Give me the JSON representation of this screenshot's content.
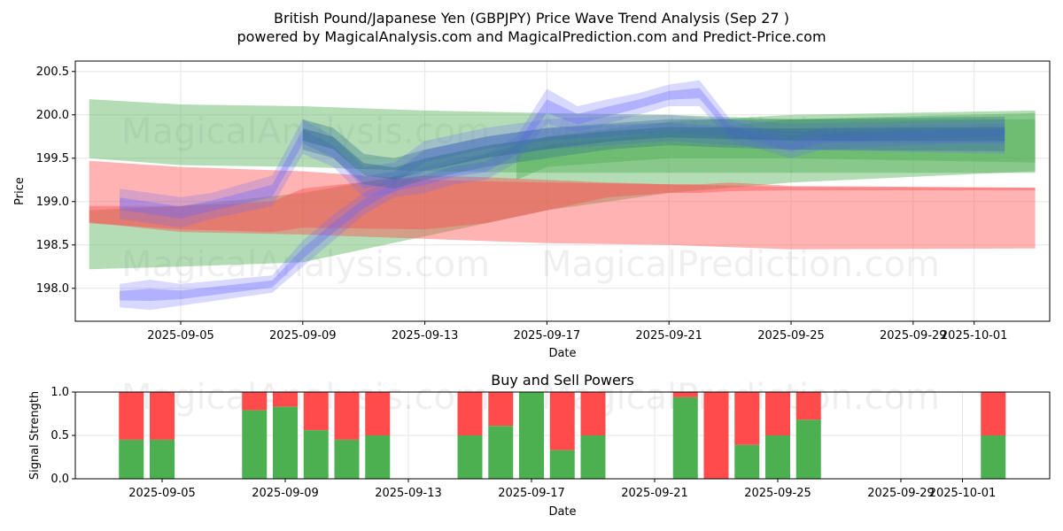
{
  "page": {
    "title": "British Pound/Japanese Yen (GBPJPY) Price Wave Trend Analysis (Sep 27 )",
    "subtitle": "powered by MagicalAnalysis.com and MagicalPrediction.com and Predict-Price.com",
    "watermarks": [
      "MagicalAnalysis.com",
      "MagicalPrediction.com"
    ]
  },
  "colors": {
    "green": "#4caf50",
    "red": "#ff4b4b",
    "blue": "#6666ff",
    "teal": "#2e6f8e",
    "grid": "#e6e6e6"
  },
  "chart_data": [
    {
      "type": "area",
      "title": "",
      "xlabel": "Date",
      "ylabel": "Price",
      "x_range": [
        "2025-09-02",
        "2025-10-03"
      ],
      "ylim": [
        197.62,
        200.62
      ],
      "yticks": [
        "198.0",
        "198.5",
        "199.0",
        "199.5",
        "200.0",
        "200.5"
      ],
      "xticks": [
        "2025-09-05",
        "2025-09-09",
        "2025-09-13",
        "2025-09-17",
        "2025-09-21",
        "2025-09-25",
        "2025-09-29",
        "2025-10-01"
      ],
      "grid": true,
      "series": [
        {
          "color": "green",
          "style": "band",
          "x": [
            "2025-09-02",
            "2025-09-05",
            "2025-09-09",
            "2025-09-13",
            "2025-09-17",
            "2025-09-21",
            "2025-09-25",
            "2025-10-03"
          ],
          "upper": [
            200.18,
            200.12,
            200.1,
            200.05,
            200.02,
            200.0,
            199.95,
            199.95
          ],
          "lower": [
            199.5,
            199.42,
            199.4,
            199.35,
            199.33,
            199.33,
            199.33,
            199.33
          ]
        },
        {
          "color": "green",
          "style": "band",
          "x": [
            "2025-09-02",
            "2025-09-05",
            "2025-09-09",
            "2025-09-13",
            "2025-09-17",
            "2025-09-21",
            "2025-09-25",
            "2025-10-03"
          ],
          "upper": [
            198.9,
            198.95,
            199.1,
            199.35,
            199.75,
            199.92,
            200.0,
            200.05
          ],
          "lower": [
            198.22,
            198.25,
            198.3,
            198.6,
            198.9,
            199.1,
            199.22,
            199.35
          ]
        },
        {
          "color": "green",
          "style": "band",
          "x": [
            "2025-09-16",
            "2025-09-17",
            "2025-09-21",
            "2025-09-25",
            "2025-10-03"
          ],
          "upper": [
            199.55,
            199.65,
            199.8,
            199.95,
            200.02
          ],
          "lower": [
            199.25,
            199.4,
            199.5,
            199.5,
            199.45
          ]
        },
        {
          "color": "red",
          "style": "band",
          "x": [
            "2025-09-02",
            "2025-09-05",
            "2025-09-09",
            "2025-09-13",
            "2025-09-17",
            "2025-09-21",
            "2025-09-25",
            "2025-10-03"
          ],
          "upper": [
            199.47,
            199.4,
            199.35,
            199.25,
            199.22,
            199.2,
            199.17,
            199.16
          ],
          "lower": [
            198.76,
            198.65,
            198.62,
            198.57,
            198.52,
            198.5,
            198.45,
            198.46
          ]
        },
        {
          "color": "red",
          "style": "band",
          "x": [
            "2025-09-02",
            "2025-09-05",
            "2025-09-08",
            "2025-09-09",
            "2025-09-13",
            "2025-09-15",
            "2025-09-17",
            "2025-09-19",
            "2025-09-21",
            "2025-09-22",
            "2025-09-23",
            "2025-09-25",
            "2025-10-03"
          ],
          "upper": [
            198.95,
            198.95,
            199.0,
            199.15,
            199.3,
            199.28,
            199.25,
            199.22,
            199.2,
            199.2,
            199.22,
            199.18,
            199.16
          ],
          "lower": [
            198.75,
            198.68,
            198.65,
            198.7,
            198.68,
            198.75,
            198.9,
            199.05,
            199.1,
            199.1,
            199.12,
            199.13,
            199.13
          ]
        },
        {
          "color": "blue",
          "style": "wave",
          "x": [
            "2025-09-03",
            "2025-09-04",
            "2025-09-05",
            "2025-09-08",
            "2025-09-09",
            "2025-09-10",
            "2025-09-11",
            "2025-09-12",
            "2025-09-13",
            "2025-09-14",
            "2025-09-15",
            "2025-09-16",
            "2025-09-17",
            "2025-09-18",
            "2025-09-19",
            "2025-09-20",
            "2025-09-21",
            "2025-09-22",
            "2025-09-23",
            "2025-09-24",
            "2025-09-25",
            "2025-09-26",
            "2025-10-02"
          ],
          "upper": [
            198.05,
            198.1,
            198.05,
            198.15,
            198.55,
            198.85,
            199.1,
            199.3,
            199.4,
            199.5,
            199.55,
            199.75,
            200.3,
            200.1,
            200.18,
            200.25,
            200.35,
            200.4,
            199.95,
            199.85,
            199.75,
            199.85,
            199.9
          ],
          "lower": [
            197.78,
            197.75,
            197.8,
            197.95,
            198.25,
            198.55,
            198.85,
            199.05,
            199.1,
            199.2,
            199.25,
            199.45,
            199.9,
            199.8,
            199.9,
            200.0,
            200.1,
            200.1,
            199.7,
            199.6,
            199.5,
            199.6,
            199.7
          ]
        },
        {
          "color": "blue",
          "style": "wave",
          "x": [
            "2025-09-03",
            "2025-09-04",
            "2025-09-05",
            "2025-09-06",
            "2025-09-08",
            "2025-09-09",
            "2025-09-10",
            "2025-09-11",
            "2025-09-12",
            "2025-09-13",
            "2025-09-15",
            "2025-09-17",
            "2025-09-19",
            "2025-09-21",
            "2025-09-23",
            "2025-09-25",
            "2025-10-02"
          ],
          "upper": [
            199.15,
            199.1,
            199.05,
            199.1,
            199.3,
            199.95,
            199.75,
            199.4,
            199.45,
            199.7,
            199.85,
            199.95,
            199.98,
            200.0,
            199.95,
            199.9,
            199.95
          ],
          "lower": [
            198.8,
            198.75,
            198.7,
            198.8,
            198.95,
            199.55,
            199.4,
            199.05,
            199.1,
            199.35,
            199.5,
            199.6,
            199.65,
            199.7,
            199.65,
            199.6,
            199.55
          ]
        },
        {
          "color": "teal",
          "style": "wave",
          "x": [
            "2025-09-09",
            "2025-09-10",
            "2025-09-11",
            "2025-09-12",
            "2025-09-13",
            "2025-09-15",
            "2025-09-17",
            "2025-09-19",
            "2025-09-21",
            "2025-09-23",
            "2025-09-25",
            "2025-10-02"
          ],
          "upper": [
            199.95,
            199.85,
            199.55,
            199.5,
            199.6,
            199.75,
            199.85,
            199.9,
            199.95,
            199.95,
            199.95,
            199.98
          ],
          "lower": [
            199.6,
            199.5,
            199.2,
            199.15,
            199.25,
            199.4,
            199.5,
            199.6,
            199.65,
            199.62,
            199.6,
            199.58
          ]
        }
      ],
      "watermark_texts": [
        "MagicalAnalysis.com",
        "MagicalPrediction.com"
      ]
    },
    {
      "type": "bar",
      "title": "Buy and Sell Powers",
      "xlabel": "Date",
      "ylabel": "Signal Strength",
      "ylim": [
        0,
        1
      ],
      "yticks": [
        "0.0",
        "0.5",
        "1.0"
      ],
      "xticks": [
        "2025-09-05",
        "2025-09-09",
        "2025-09-13",
        "2025-09-17",
        "2025-09-21",
        "2025-09-25",
        "2025-09-29",
        "2025-10-01"
      ],
      "grid": true,
      "series": [
        {
          "name": "buy",
          "color": "green"
        },
        {
          "name": "sell",
          "color": "red"
        }
      ],
      "bars": [
        {
          "date": "2025-09-04",
          "buy": 0.45
        },
        {
          "date": "2025-09-05",
          "buy": 0.45
        },
        {
          "date": "2025-09-08",
          "buy": 0.79
        },
        {
          "date": "2025-09-09",
          "buy": 0.83
        },
        {
          "date": "2025-09-10",
          "buy": 0.56
        },
        {
          "date": "2025-09-11",
          "buy": 0.45
        },
        {
          "date": "2025-09-12",
          "buy": 0.5
        },
        {
          "date": "2025-09-15",
          "buy": 0.5
        },
        {
          "date": "2025-09-16",
          "buy": 0.61
        },
        {
          "date": "2025-09-17",
          "buy": 1.0
        },
        {
          "date": "2025-09-18",
          "buy": 0.33
        },
        {
          "date": "2025-09-19",
          "buy": 0.5
        },
        {
          "date": "2025-09-22",
          "buy": 0.94
        },
        {
          "date": "2025-09-23",
          "buy": 0.0
        },
        {
          "date": "2025-09-24",
          "buy": 0.39
        },
        {
          "date": "2025-09-25",
          "buy": 0.5
        },
        {
          "date": "2025-09-26",
          "buy": 0.68
        },
        {
          "date": "2025-10-02",
          "buy": 0.5
        }
      ],
      "watermark_texts": [
        "MagicalAnalysis.com",
        "MagicalPrediction.com"
      ]
    }
  ]
}
